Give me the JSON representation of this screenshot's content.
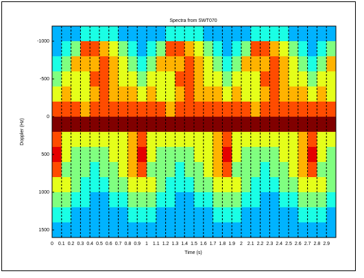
{
  "chart_data": {
    "type": "heatmap",
    "title": "Spectra from SWT070",
    "xlabel": "Time (s)",
    "ylabel": "Doppler (Hz)",
    "xlim": [
      0,
      3
    ],
    "ylim": [
      -1200,
      1600
    ],
    "y_reversed": true,
    "xticks": [
      0,
      0.1,
      0.2,
      0.3,
      0.4,
      0.5,
      0.6,
      0.7,
      0.8,
      0.9,
      1,
      1.1,
      1.2,
      1.3,
      1.4,
      1.5,
      1.6,
      1.7,
      1.8,
      1.9,
      2,
      2.1,
      2.2,
      2.3,
      2.4,
      2.5,
      2.6,
      2.7,
      2.8,
      2.9
    ],
    "yticks": [
      -1000,
      -500,
      0,
      500,
      1000,
      1500
    ],
    "xgrid": true,
    "colormap": "jet",
    "clim": [
      0,
      10
    ],
    "z": [
      [
        3,
        3,
        4,
        5,
        6,
        8,
        10,
        8,
        9,
        8,
        6,
        5,
        4,
        3
      ],
      [
        3,
        4,
        5,
        6,
        7,
        8,
        10,
        6,
        6,
        5,
        6,
        5,
        4,
        3
      ],
      [
        3,
        5,
        7,
        6,
        6,
        8,
        10,
        6,
        5,
        5,
        5,
        4,
        3,
        3
      ],
      [
        4,
        8,
        7,
        6,
        6,
        7,
        10,
        6,
        5,
        5,
        4,
        4,
        3,
        3
      ],
      [
        4,
        8,
        7,
        8,
        7,
        8,
        10,
        6,
        5,
        4,
        4,
        3,
        3,
        3
      ],
      [
        4,
        7,
        8,
        8,
        8,
        8,
        10,
        6,
        5,
        5,
        4,
        3,
        3,
        3
      ],
      [
        4,
        6,
        7,
        7,
        7,
        8,
        10,
        6,
        6,
        5,
        5,
        4,
        3,
        3
      ],
      [
        3,
        5,
        6,
        6,
        7,
        8,
        10,
        6,
        6,
        6,
        5,
        4,
        3,
        3
      ],
      [
        3,
        4,
        5,
        6,
        7,
        8,
        10,
        7,
        7,
        7,
        6,
        5,
        4,
        3
      ],
      [
        3,
        3,
        4,
        5,
        6,
        8,
        10,
        8,
        9,
        8,
        6,
        5,
        4,
        3
      ],
      [
        3,
        4,
        5,
        6,
        7,
        8,
        10,
        6,
        6,
        5,
        6,
        5,
        4,
        3
      ],
      [
        3,
        5,
        7,
        6,
        6,
        8,
        10,
        6,
        5,
        5,
        5,
        4,
        3,
        3
      ],
      [
        4,
        8,
        7,
        6,
        6,
        7,
        10,
        6,
        5,
        5,
        4,
        4,
        3,
        3
      ],
      [
        4,
        8,
        7,
        8,
        7,
        8,
        10,
        6,
        5,
        4,
        4,
        3,
        3,
        3
      ],
      [
        4,
        7,
        8,
        8,
        8,
        8,
        10,
        6,
        5,
        5,
        4,
        3,
        3,
        3
      ],
      [
        4,
        6,
        7,
        7,
        7,
        8,
        10,
        6,
        6,
        5,
        5,
        4,
        3,
        3
      ],
      [
        3,
        5,
        6,
        6,
        7,
        8,
        10,
        6,
        6,
        6,
        5,
        4,
        3,
        3
      ],
      [
        3,
        4,
        5,
        6,
        7,
        8,
        10,
        7,
        7,
        7,
        6,
        5,
        4,
        3
      ],
      [
        3,
        3,
        4,
        5,
        6,
        8,
        10,
        8,
        9,
        8,
        6,
        5,
        4,
        3
      ],
      [
        3,
        4,
        5,
        6,
        7,
        8,
        10,
        6,
        6,
        5,
        6,
        5,
        4,
        3
      ],
      [
        3,
        5,
        7,
        6,
        6,
        8,
        10,
        6,
        5,
        5,
        5,
        4,
        3,
        3
      ],
      [
        4,
        8,
        7,
        6,
        6,
        7,
        10,
        6,
        5,
        5,
        4,
        4,
        3,
        3
      ],
      [
        4,
        8,
        7,
        8,
        7,
        8,
        10,
        6,
        5,
        4,
        4,
        3,
        3,
        3
      ],
      [
        4,
        7,
        8,
        8,
        8,
        8,
        10,
        6,
        5,
        5,
        4,
        3,
        3,
        3
      ],
      [
        4,
        6,
        7,
        7,
        7,
        8,
        10,
        6,
        6,
        5,
        5,
        4,
        3,
        3
      ],
      [
        3,
        5,
        6,
        6,
        7,
        8,
        10,
        6,
        6,
        6,
        5,
        4,
        3,
        3
      ],
      [
        3,
        4,
        5,
        6,
        7,
        8,
        10,
        7,
        7,
        7,
        6,
        5,
        4,
        3
      ],
      [
        3,
        3,
        4,
        5,
        6,
        8,
        10,
        8,
        9,
        8,
        6,
        5,
        4,
        3
      ],
      [
        3,
        4,
        5,
        6,
        7,
        8,
        10,
        6,
        6,
        5,
        6,
        5,
        4,
        3
      ],
      [
        3,
        5,
        7,
        6,
        6,
        8,
        10,
        6,
        5,
        5,
        5,
        4,
        3,
        3
      ]
    ]
  }
}
